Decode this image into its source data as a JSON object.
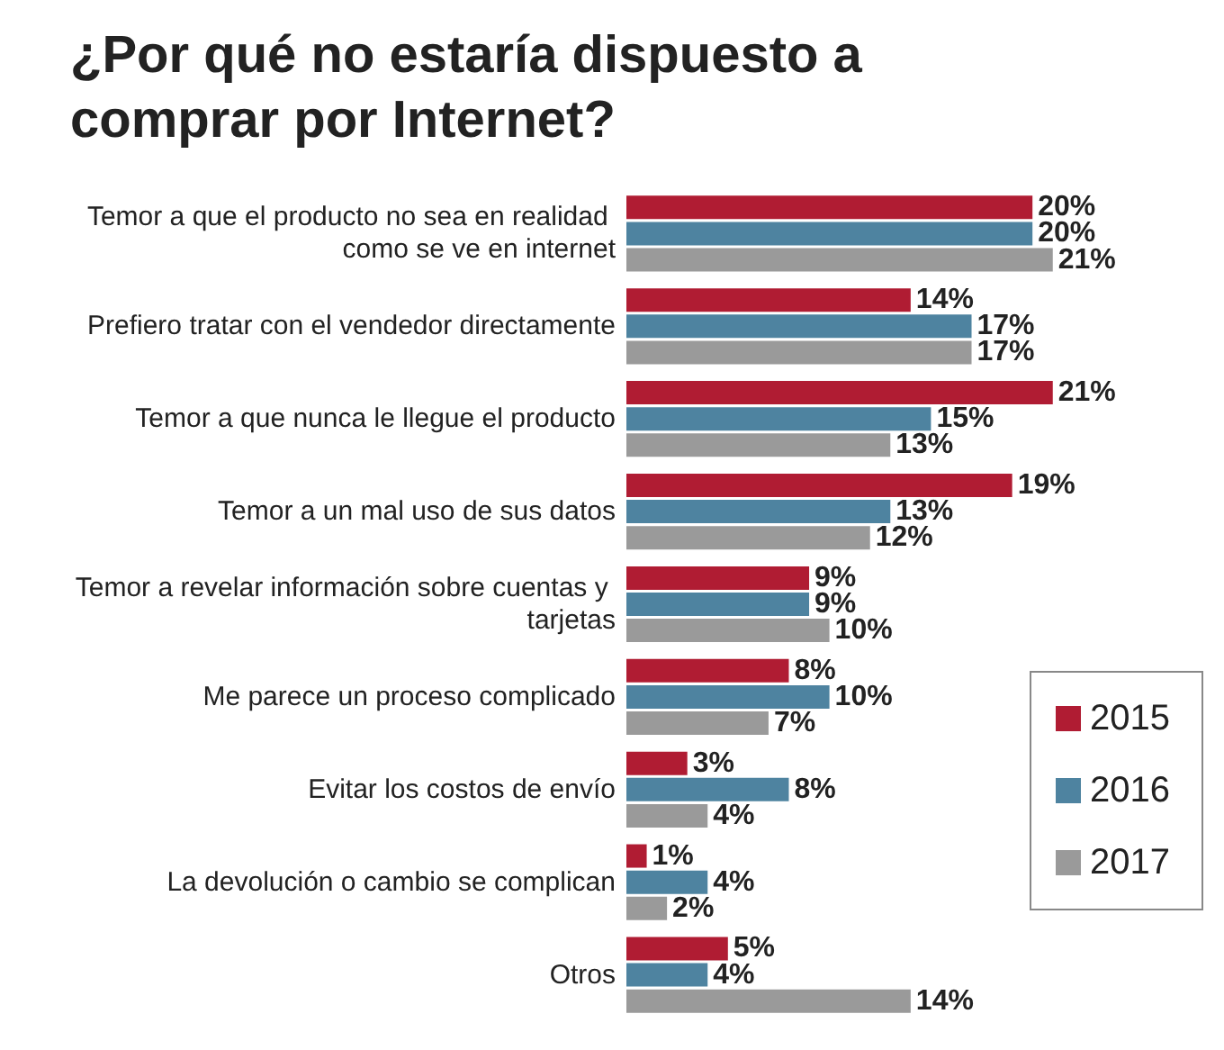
{
  "chart_data": {
    "type": "bar",
    "orientation": "horizontal",
    "title": "¿Por qué no estaría dispuesto a comprar por Internet?",
    "categories": [
      "Temor a que el producto no sea en realidad como se ve en internet",
      "Prefiero tratar con el vendedor directamente",
      "Temor a que nunca le llegue el producto",
      "Temor a un mal uso de sus datos",
      "Temor a revelar información sobre cuentas y tarjetas",
      "Me parece un proceso complicado",
      "Evitar los costos de envío",
      "La devolución o cambio se complican",
      "Otros"
    ],
    "series": [
      {
        "name": "2015",
        "color": "#b01c33",
        "values": [
          20,
          14,
          21,
          19,
          9,
          8,
          3,
          1,
          5
        ],
        "value_labels": [
          "20%",
          "14%",
          "21%",
          "19%",
          "9%",
          "8%",
          "3%",
          "1%",
          "5%"
        ]
      },
      {
        "name": "2016",
        "color": "#4e83a0",
        "values": [
          20,
          17,
          15,
          13,
          9,
          10,
          8,
          4,
          4
        ],
        "value_labels": [
          "20%",
          "17%",
          "15%",
          "13%",
          "9%",
          "10%",
          "8%",
          "4%",
          "4%"
        ]
      },
      {
        "name": "2017",
        "color": "#9a9a9a",
        "values": [
          21,
          17,
          13,
          12,
          10,
          7,
          4,
          2,
          14
        ],
        "value_labels": [
          "21%",
          "17%",
          "13%",
          "12%",
          "10%",
          "7%",
          "4%",
          "2%",
          "14%"
        ]
      }
    ],
    "legend": "bottom right"
  }
}
